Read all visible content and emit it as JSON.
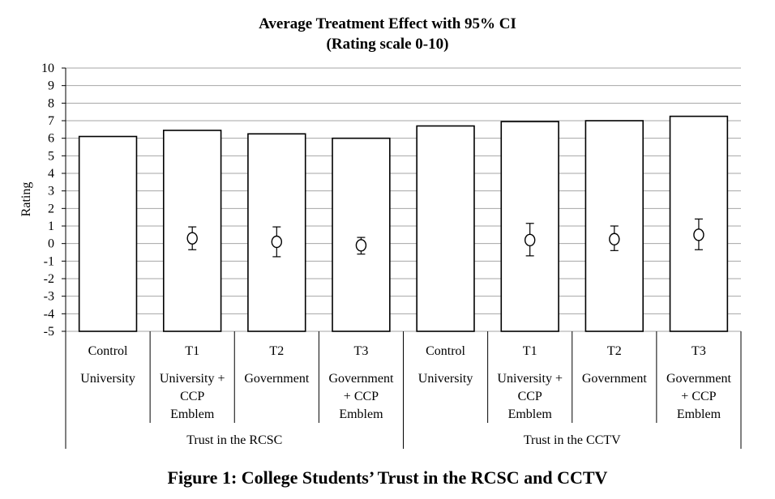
{
  "chart_data": {
    "type": "bar",
    "title": "Average Treatment Effect with 95% CI",
    "subtitle": "(Rating scale 0-10)",
    "ylabel": "Rating",
    "ylim": [
      -5,
      10
    ],
    "yticks": [
      "10",
      "9",
      "8",
      "7",
      "6",
      "5",
      "4",
      "3",
      "2",
      "1",
      "0",
      "-1",
      "-2",
      "-3",
      "-4",
      "-5"
    ],
    "categories": [
      {
        "treatment": "Control",
        "label": [
          "University"
        ]
      },
      {
        "treatment": "T1",
        "label": [
          "University +",
          "CCP",
          "Emblem"
        ]
      },
      {
        "treatment": "T2",
        "label": [
          "Government"
        ]
      },
      {
        "treatment": "T3",
        "label": [
          "Government",
          "+ CCP",
          "Emblem"
        ]
      },
      {
        "treatment": "Control",
        "label": [
          "University"
        ]
      },
      {
        "treatment": "T1",
        "label": [
          "University +",
          "CCP",
          "Emblem"
        ]
      },
      {
        "treatment": "T2",
        "label": [
          "Government"
        ]
      },
      {
        "treatment": "T3",
        "label": [
          "Government",
          "+ CCP",
          "Emblem"
        ]
      }
    ],
    "groups": [
      {
        "label": "Trust in the RCSC",
        "categories": [
          0,
          1,
          2,
          3
        ]
      },
      {
        "label": "Trust in the CCTV",
        "categories": [
          4,
          5,
          6,
          7
        ]
      }
    ],
    "series": [
      {
        "values": [
          6.1,
          6.45,
          6.25,
          6.0,
          6.7,
          6.95,
          7.0,
          7.25
        ],
        "baseline": -5,
        "color": "#ffffff",
        "stroke": "#000000"
      }
    ],
    "treatment_effects": [
      null,
      {
        "estimate": 0.3,
        "ci": [
          -0.35,
          0.95
        ]
      },
      {
        "estimate": 0.1,
        "ci": [
          -0.75,
          0.95
        ]
      },
      {
        "estimate": -0.1,
        "ci": [
          -0.6,
          0.35
        ]
      },
      null,
      {
        "estimate": 0.2,
        "ci": [
          -0.7,
          1.15
        ]
      },
      {
        "estimate": 0.25,
        "ci": [
          -0.4,
          1.0
        ]
      },
      {
        "estimate": 0.5,
        "ci": [
          -0.35,
          1.4
        ]
      }
    ],
    "grid": true,
    "gridline_color": "#a6a6a6"
  },
  "caption": "Figure 1: College Students’ Trust in the RCSC and CCTV"
}
